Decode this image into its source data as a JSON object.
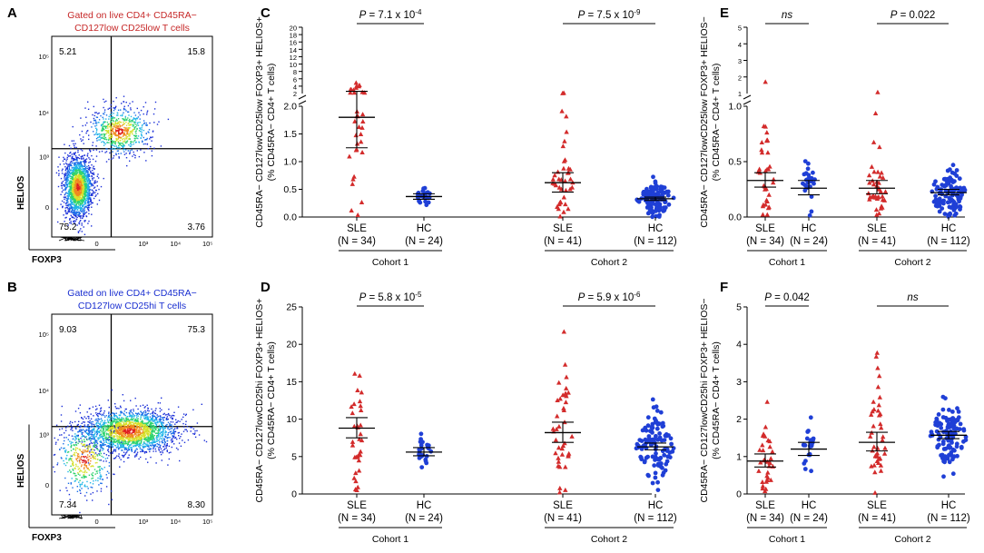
{
  "colors": {
    "sle": "#d32b2b",
    "hc": "#1f3fd6",
    "gate_low": "#c62828",
    "gate_hi": "#1a2fd0"
  },
  "chart_data": [
    {
      "id": "A",
      "type": "scatter",
      "subtype": "flow-cytometry density plot",
      "panel_label": "A",
      "title_line1": "Gated on live CD4+ CD45RA−",
      "title_line2": "CD127low CD25low T cells",
      "xlabel": "FOXP3",
      "ylabel": "HELIOS",
      "x_ticks": [
        "0",
        "10³",
        "10⁴",
        "10⁵"
      ],
      "y_ticks": [
        "10⁵",
        "10⁴",
        "10³",
        "0"
      ],
      "quadrants": {
        "upper_left": "5.21",
        "upper_right": "15.8",
        "lower_left": "75.2",
        "lower_right": "3.76"
      }
    },
    {
      "id": "B",
      "type": "scatter",
      "subtype": "flow-cytometry density plot",
      "panel_label": "B",
      "title_line1": "Gated on live CD4+ CD45RA−",
      "title_line2": "CD127low CD25hi T cells",
      "xlabel": "FOXP3",
      "ylabel": "HELIOS",
      "x_ticks": [
        "0",
        "10³",
        "10⁴",
        "10⁵"
      ],
      "y_ticks": [
        "10⁵",
        "10⁴",
        "10³",
        "0"
      ],
      "quadrants": {
        "upper_left": "9.03",
        "upper_right": "75.3",
        "lower_left": "7.34",
        "lower_right": "8.30"
      }
    },
    {
      "id": "C",
      "type": "scatter",
      "panel_label": "C",
      "ylabel_line1": "CD45RA− CD127lowCD25low FOXP3+ HELIOS+",
      "ylabel_line2": "(% CD45RA− CD4+ T cells)",
      "y_axis_broken": true,
      "y_ticks_lower": [
        "0.0",
        "0.5",
        "1.0",
        "1.5",
        "2.0"
      ],
      "y_ticks_upper": [
        "2",
        "4",
        "6",
        "8",
        "10",
        "12",
        "14",
        "16",
        "18",
        "20"
      ],
      "groups": [
        {
          "name": "SLE",
          "n_label": "(N = 34)",
          "mean": 1.8,
          "ci": [
            1.25,
            2.6
          ]
        },
        {
          "name": "HC",
          "n_label": "(N = 24)",
          "mean": 0.37,
          "ci": [
            0.32,
            0.42
          ]
        },
        {
          "name": "SLE",
          "n_label": "(N = 41)",
          "mean": 0.62,
          "ci": [
            0.45,
            0.8
          ]
        },
        {
          "name": "HC",
          "n_label": "(N = 112)",
          "mean": 0.33,
          "ci": [
            0.3,
            0.36
          ]
        }
      ],
      "cohorts": [
        "Cohort 1",
        "Cohort 2"
      ],
      "comparisons": [
        "P = 7.1 x 10-4",
        "P = 7.5 x 10-9"
      ]
    },
    {
      "id": "D",
      "type": "scatter",
      "panel_label": "D",
      "ylabel_line1": "CD45RA− CD127lowCD25hi FOXP3+ HELIOS+",
      "ylabel_line2": "(% CD45RA− CD4+ T cells)",
      "ylim": [
        0,
        25
      ],
      "y_ticks": [
        "0",
        "5",
        "10",
        "15",
        "20",
        "25"
      ],
      "groups": [
        {
          "name": "SLE",
          "n_label": "(N = 34)",
          "mean": 8.8,
          "ci": [
            7.5,
            10.2
          ]
        },
        {
          "name": "HC",
          "n_label": "(N = 24)",
          "mean": 5.6,
          "ci": [
            5.1,
            6.2
          ]
        },
        {
          "name": "SLE",
          "n_label": "(N = 41)",
          "mean": 8.2,
          "ci": [
            6.9,
            9.6
          ]
        },
        {
          "name": "HC",
          "n_label": "(N = 112)",
          "mean": 6.3,
          "ci": [
            5.9,
            6.8
          ]
        }
      ],
      "cohorts": [
        "Cohort 1",
        "Cohort 2"
      ],
      "comparisons": [
        "P = 5.8 x 10-5",
        "P = 5.9 x 10-6"
      ]
    },
    {
      "id": "E",
      "type": "scatter",
      "panel_label": "E",
      "ylabel_line1": "CD45RA− CD127lowCD25low FOXP3+ HELIOS−",
      "ylabel_line2": "(% CD45RA− CD4+ T cells)",
      "y_axis_broken": true,
      "y_ticks_lower": [
        "0.0",
        "0.5",
        "1.0"
      ],
      "y_ticks_upper": [
        "1",
        "2",
        "3",
        "4",
        "5"
      ],
      "groups": [
        {
          "name": "SLE",
          "n_label": "(N = 34)",
          "mean": 0.33,
          "ci": [
            0.27,
            0.4
          ]
        },
        {
          "name": "HC",
          "n_label": "(N = 24)",
          "mean": 0.26,
          "ci": [
            0.2,
            0.33
          ]
        },
        {
          "name": "SLE",
          "n_label": "(N = 41)",
          "mean": 0.26,
          "ci": [
            0.21,
            0.33
          ]
        },
        {
          "name": "HC",
          "n_label": "(N = 112)",
          "mean": 0.22,
          "ci": [
            0.2,
            0.25
          ]
        }
      ],
      "cohorts": [
        "Cohort 1",
        "Cohort 2"
      ],
      "comparisons": [
        "ns",
        "P = 0.022"
      ]
    },
    {
      "id": "F",
      "type": "scatter",
      "panel_label": "F",
      "ylabel_line1": "CD45RA− CD127lowCD25hi FOXP3+ HELIOS−",
      "ylabel_line2": "(% CD45RA− CD4+ T cells)",
      "ylim": [
        0,
        5
      ],
      "y_ticks": [
        "0",
        "1",
        "2",
        "3",
        "4",
        "5"
      ],
      "groups": [
        {
          "name": "SLE",
          "n_label": "(N = 34)",
          "mean": 0.88,
          "ci": [
            0.72,
            1.07
          ]
        },
        {
          "name": "HC",
          "n_label": "(N = 24)",
          "mean": 1.2,
          "ci": [
            1.03,
            1.38
          ]
        },
        {
          "name": "SLE",
          "n_label": "(N = 41)",
          "mean": 1.38,
          "ci": [
            1.15,
            1.65
          ]
        },
        {
          "name": "HC",
          "n_label": "(N = 112)",
          "mean": 1.57,
          "ci": [
            1.48,
            1.67
          ]
        }
      ],
      "cohorts": [
        "Cohort 1",
        "Cohort 2"
      ],
      "comparisons": [
        "P = 0.042",
        "ns"
      ]
    }
  ]
}
